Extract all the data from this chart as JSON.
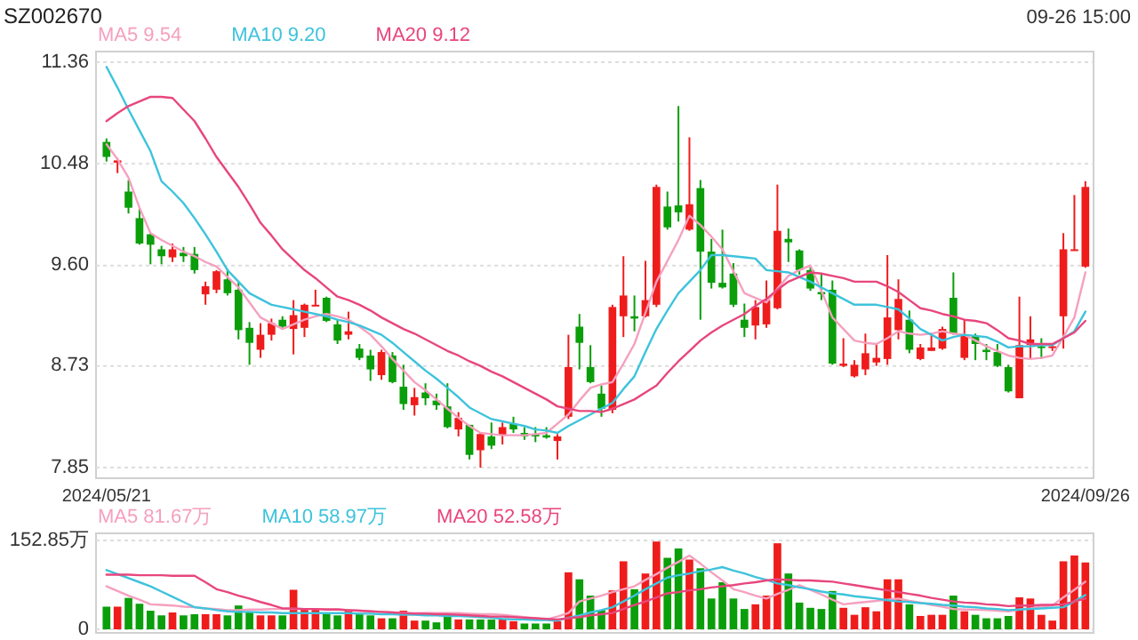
{
  "chart_data": [
    {
      "type": "candlestick",
      "title": "SZ002670",
      "annotations": [
        "09-26 15:00"
      ],
      "categories": [
        "2024/05/21",
        null,
        null,
        null,
        null,
        null,
        null,
        null,
        null,
        null,
        null,
        null,
        null,
        null,
        null,
        null,
        null,
        null,
        null,
        null,
        null,
        null,
        null,
        null,
        null,
        null,
        null,
        null,
        null,
        null,
        null,
        null,
        null,
        null,
        null,
        null,
        null,
        null,
        null,
        null,
        null,
        null,
        null,
        null,
        null,
        null,
        null,
        null,
        null,
        null,
        null,
        null,
        null,
        null,
        null,
        null,
        null,
        null,
        null,
        null,
        null,
        null,
        null,
        null,
        null,
        null,
        null,
        null,
        null,
        null,
        null,
        null,
        null,
        null,
        null,
        null,
        null,
        null,
        null,
        null,
        null,
        null,
        null,
        null,
        null,
        null,
        null,
        null,
        null,
        "2024/09/26"
      ],
      "ohlc": [
        [
          10.67,
          10.7,
          10.5,
          10.54
        ],
        [
          10.49,
          10.53,
          10.4,
          10.51
        ],
        [
          10.24,
          10.34,
          10.05,
          10.1
        ],
        [
          10.01,
          10.09,
          9.78,
          9.79
        ],
        [
          9.87,
          9.88,
          9.61,
          9.78
        ],
        [
          9.74,
          9.77,
          9.61,
          9.68
        ],
        [
          9.67,
          9.79,
          9.63,
          9.74
        ],
        [
          9.71,
          9.76,
          9.63,
          9.68
        ],
        [
          9.7,
          9.76,
          9.53,
          9.56
        ],
        [
          9.35,
          9.46,
          9.26,
          9.42
        ],
        [
          9.39,
          9.56,
          9.36,
          9.55
        ],
        [
          9.48,
          9.57,
          9.34,
          9.36
        ],
        [
          9.39,
          9.45,
          8.96,
          9.04
        ],
        [
          9.06,
          9.11,
          8.74,
          8.93
        ],
        [
          8.87,
          9.1,
          8.8,
          9.0
        ],
        [
          9.0,
          9.14,
          8.95,
          9.1
        ],
        [
          9.13,
          9.16,
          9.06,
          9.07
        ],
        [
          9.05,
          9.3,
          8.83,
          9.17
        ],
        [
          9.06,
          9.27,
          8.98,
          9.26
        ],
        [
          9.25,
          9.39,
          9.25,
          9.26
        ],
        [
          9.32,
          9.33,
          9.11,
          9.12
        ],
        [
          9.09,
          9.13,
          8.92,
          8.95
        ],
        [
          9.0,
          9.2,
          8.96,
          9.03
        ],
        [
          8.88,
          8.92,
          8.78,
          8.8
        ],
        [
          8.82,
          8.87,
          8.6,
          8.7
        ],
        [
          8.65,
          8.87,
          8.61,
          8.85
        ],
        [
          8.82,
          8.85,
          8.58,
          8.59
        ],
        [
          8.55,
          8.74,
          8.35,
          8.4
        ],
        [
          8.39,
          8.54,
          8.3,
          8.46
        ],
        [
          8.5,
          8.58,
          8.39,
          8.45
        ],
        [
          8.43,
          8.49,
          8.35,
          8.39
        ],
        [
          8.38,
          8.58,
          8.19,
          8.2
        ],
        [
          8.18,
          8.33,
          8.12,
          8.28
        ],
        [
          8.22,
          8.22,
          7.92,
          7.96
        ],
        [
          8.0,
          8.15,
          7.85,
          8.14
        ],
        [
          8.12,
          8.24,
          8.01,
          8.04
        ],
        [
          8.13,
          8.24,
          8.05,
          8.2
        ],
        [
          8.23,
          8.29,
          8.15,
          8.18
        ],
        [
          8.15,
          8.2,
          8.09,
          8.12
        ],
        [
          8.14,
          8.2,
          8.07,
          8.12
        ],
        [
          8.13,
          8.2,
          8.1,
          8.11
        ],
        [
          8.08,
          8.14,
          7.92,
          8.12
        ],
        [
          8.29,
          9.0,
          8.27,
          8.72
        ],
        [
          9.07,
          9.18,
          8.7,
          8.93
        ],
        [
          8.72,
          8.91,
          8.58,
          8.59
        ],
        [
          8.49,
          8.56,
          8.29,
          8.36
        ],
        [
          8.35,
          9.26,
          8.32,
          9.24
        ],
        [
          9.16,
          9.68,
          8.98,
          9.34
        ],
        [
          9.16,
          9.34,
          9.03,
          9.14
        ],
        [
          9.16,
          9.64,
          9.15,
          9.3
        ],
        [
          9.26,
          10.3,
          9.24,
          10.28
        ],
        [
          10.11,
          10.24,
          9.91,
          9.93
        ],
        [
          10.12,
          10.98,
          9.98,
          10.06
        ],
        [
          9.91,
          10.71,
          9.9,
          10.13
        ],
        [
          10.27,
          10.34,
          9.13,
          9.72
        ],
        [
          9.72,
          9.83,
          9.4,
          9.45
        ],
        [
          9.45,
          9.91,
          9.4,
          9.41
        ],
        [
          9.53,
          9.62,
          9.24,
          9.26
        ],
        [
          9.13,
          9.27,
          8.98,
          9.06
        ],
        [
          9.08,
          9.3,
          8.96,
          9.24
        ],
        [
          9.09,
          9.47,
          9.06,
          9.3
        ],
        [
          9.23,
          10.3,
          9.22,
          9.9
        ],
        [
          9.83,
          9.92,
          9.63,
          9.8
        ],
        [
          9.73,
          9.74,
          9.52,
          9.56
        ],
        [
          9.56,
          9.59,
          9.38,
          9.4
        ],
        [
          9.37,
          9.52,
          9.3,
          9.35
        ],
        [
          9.39,
          9.47,
          8.74,
          8.75
        ],
        [
          8.73,
          8.97,
          8.72,
          8.75
        ],
        [
          8.64,
          8.78,
          8.63,
          8.74
        ],
        [
          8.7,
          9.01,
          8.65,
          8.84
        ],
        [
          8.76,
          8.92,
          8.73,
          8.8
        ],
        [
          8.79,
          9.69,
          8.74,
          9.15
        ],
        [
          9.04,
          9.48,
          8.96,
          9.31
        ],
        [
          9.13,
          9.21,
          8.84,
          8.87
        ],
        [
          8.79,
          8.92,
          8.78,
          8.89
        ],
        [
          8.86,
          9.01,
          8.86,
          8.89
        ],
        [
          8.88,
          9.07,
          8.87,
          9.05
        ],
        [
          9.32,
          9.54,
          9.0,
          9.01
        ],
        [
          8.8,
          9.13,
          8.78,
          8.99
        ],
        [
          8.99,
          9.01,
          8.78,
          8.92
        ],
        [
          8.87,
          8.92,
          8.78,
          8.85
        ],
        [
          8.85,
          8.92,
          8.72,
          8.73
        ],
        [
          8.72,
          8.74,
          8.5,
          8.51
        ],
        [
          8.45,
          9.33,
          8.45,
          8.91
        ],
        [
          8.91,
          9.16,
          8.79,
          8.96
        ],
        [
          8.9,
          8.97,
          8.79,
          8.89
        ],
        [
          8.89,
          8.92,
          8.86,
          8.9
        ],
        [
          9.16,
          9.88,
          8.88,
          9.74
        ],
        [
          9.73,
          10.21,
          9.73,
          9.74
        ],
        [
          9.59,
          10.33,
          9.58,
          10.28
        ]
      ],
      "colors": [
        "#0a9e0a",
        "#ef1c1c",
        "#0a9e0a",
        "#0a9e0a",
        "#0a9e0a",
        "#0a9e0a",
        "#ef1c1c",
        "#0a9e0a",
        "#0a9e0a",
        "#ef1c1c",
        "#ef1c1c",
        "#0a9e0a",
        "#0a9e0a",
        "#0a9e0a",
        "#ef1c1c",
        "#ef1c1c",
        "#0a9e0a",
        "#ef1c1c",
        "#ef1c1c",
        "#ef1c1c",
        "#0a9e0a",
        "#0a9e0a",
        "#ef1c1c",
        "#0a9e0a",
        "#0a9e0a",
        "#ef1c1c",
        "#0a9e0a",
        "#0a9e0a",
        "#ef1c1c",
        "#0a9e0a",
        "#0a9e0a",
        "#0a9e0a",
        "#ef1c1c",
        "#0a9e0a",
        "#ef1c1c",
        "#0a9e0a",
        "#ef1c1c",
        "#0a9e0a",
        "#0a9e0a",
        "#0a9e0a",
        "#0a9e0a",
        "#ef1c1c",
        "#ef1c1c",
        "#0a9e0a",
        "#0a9e0a",
        "#0a9e0a",
        "#ef1c1c",
        "#ef1c1c",
        "#0a9e0a",
        "#ef1c1c",
        "#ef1c1c",
        "#0a9e0a",
        "#0a9e0a",
        "#ef1c1c",
        "#0a9e0a",
        "#0a9e0a",
        "#0a9e0a",
        "#0a9e0a",
        "#0a9e0a",
        "#ef1c1c",
        "#ef1c1c",
        "#ef1c1c",
        "#0a9e0a",
        "#0a9e0a",
        "#0a9e0a",
        "#0a9e0a",
        "#0a9e0a",
        "#ef1c1c",
        "#ef1c1c",
        "#ef1c1c",
        "#ef1c1c",
        "#ef1c1c",
        "#ef1c1c",
        "#0a9e0a",
        "#ef1c1c",
        "#ef1c1c",
        "#ef1c1c",
        "#0a9e0a",
        "#ef1c1c",
        "#0a9e0a",
        "#0a9e0a",
        "#0a9e0a",
        "#0a9e0a",
        "#ef1c1c",
        "#ef1c1c",
        "#0a9e0a",
        "#ef1c1c",
        "#ef1c1c",
        "#ef1c1c",
        "#ef1c1c"
      ],
      "series": [
        {
          "type": "line",
          "name": "MA5 9.54",
          "color": "#f5a0bf",
          "values": [
            10.65,
            10.52,
            10.36,
            10.1,
            9.88,
            9.82,
            9.77,
            9.72,
            9.68,
            9.63,
            9.59,
            9.5,
            9.41,
            9.28,
            9.15,
            9.1,
            9.05,
            9.09,
            9.13,
            9.16,
            9.18,
            9.16,
            9.13,
            9.07,
            9.0,
            8.9,
            8.79,
            8.69,
            8.59,
            8.52,
            8.44,
            8.36,
            8.28,
            8.21,
            8.15,
            8.14,
            8.13,
            8.13,
            8.13,
            8.14,
            8.15,
            8.23,
            8.31,
            8.43,
            8.54,
            8.57,
            8.59,
            8.75,
            8.92,
            9.19,
            9.46,
            9.64,
            9.82,
            10.03,
            9.95,
            9.85,
            9.74,
            9.55,
            9.36,
            9.32,
            9.28,
            9.4,
            9.51,
            9.56,
            9.6,
            9.38,
            9.15,
            9.05,
            8.95,
            8.93,
            8.92,
            8.97,
            9.03,
            9.01,
            9.0,
            9.01,
            9.03,
            9.01,
            9.0,
            8.95,
            8.9,
            8.86,
            8.82,
            8.8,
            8.79,
            8.8,
            8.82,
            8.98,
            9.15,
            9.54
          ]
        },
        {
          "type": "line",
          "name": "MA10 9.20",
          "color": "#3ec3dc",
          "values": [
            11.32,
            11.14,
            10.95,
            10.77,
            10.59,
            10.33,
            10.24,
            10.14,
            10.01,
            9.87,
            9.72,
            9.56,
            9.46,
            9.36,
            9.31,
            9.26,
            9.24,
            9.22,
            9.2,
            9.18,
            9.16,
            9.13,
            9.11,
            9.08,
            9.04,
            9.0,
            8.93,
            8.85,
            8.77,
            8.69,
            8.62,
            8.54,
            8.46,
            8.37,
            8.32,
            8.27,
            8.25,
            8.23,
            8.21,
            8.18,
            8.17,
            8.15,
            8.21,
            8.26,
            8.31,
            8.36,
            8.41,
            8.53,
            8.64,
            8.85,
            9.05,
            9.21,
            9.36,
            9.46,
            9.56,
            9.69,
            9.69,
            9.68,
            9.67,
            9.66,
            9.56,
            9.55,
            9.54,
            9.5,
            9.46,
            9.41,
            9.36,
            9.31,
            9.26,
            9.26,
            9.26,
            9.24,
            9.22,
            9.14,
            9.05,
            9.0,
            8.95,
            8.98,
            9.0,
            8.99,
            8.98,
            8.94,
            8.89,
            8.9,
            8.9,
            8.91,
            8.91,
            8.97,
            9.03,
            9.2
          ]
        },
        {
          "type": "line",
          "name": "MA20 9.12",
          "color": "#e8467d",
          "values": [
            10.85,
            10.92,
            10.98,
            11.02,
            11.06,
            11.06,
            11.05,
            10.95,
            10.85,
            10.7,
            10.54,
            10.41,
            10.28,
            10.13,
            9.97,
            9.86,
            9.74,
            9.65,
            9.56,
            9.49,
            9.41,
            9.33,
            9.3,
            9.26,
            9.21,
            9.15,
            9.1,
            9.05,
            9.01,
            8.96,
            8.91,
            8.86,
            8.82,
            8.77,
            8.73,
            8.68,
            8.64,
            8.59,
            8.54,
            8.49,
            8.44,
            8.38,
            8.36,
            8.34,
            8.34,
            8.33,
            8.36,
            8.4,
            8.44,
            8.5,
            8.56,
            8.67,
            8.77,
            8.86,
            8.95,
            9.02,
            9.08,
            9.13,
            9.18,
            9.25,
            9.31,
            9.39,
            9.46,
            9.5,
            9.54,
            9.53,
            9.51,
            9.49,
            9.46,
            9.46,
            9.46,
            9.42,
            9.37,
            9.3,
            9.23,
            9.21,
            9.18,
            9.16,
            9.13,
            9.12,
            9.1,
            9.04,
            8.97,
            8.95,
            8.92,
            8.92,
            8.92,
            8.97,
            9.02,
            9.12
          ]
        }
      ],
      "ylim": [
        7.85,
        11.36
      ],
      "yticks": [
        11.36,
        10.48,
        {
          "value": 9.6,
          "label": "9.60"
        },
        8.73,
        7.85
      ],
      "grid": "y",
      "legend": "top left"
    },
    {
      "type": "bar",
      "categories": [
        null,
        null,
        null,
        null,
        null,
        null,
        null,
        null,
        null,
        null,
        null,
        null,
        null,
        null,
        null,
        null,
        null,
        null,
        null,
        null,
        null,
        null,
        null,
        null,
        null,
        null,
        null,
        null,
        null,
        null,
        null,
        null,
        null,
        null,
        null,
        null,
        null,
        null,
        null,
        null,
        null,
        null,
        null,
        null,
        null,
        null,
        null,
        null,
        null,
        null,
        null,
        null,
        null,
        null,
        null,
        null,
        null,
        null,
        null,
        null,
        null,
        null,
        null,
        null,
        null,
        null,
        null,
        null,
        null,
        null,
        null,
        null,
        null,
        null,
        null,
        null,
        null,
        null,
        null,
        null,
        null,
        null,
        null,
        null,
        null,
        null,
        null,
        null,
        null,
        null
      ],
      "values": [
        39,
        39,
        54,
        44,
        32,
        24,
        29,
        24,
        26,
        26,
        26,
        24,
        41,
        29,
        24,
        24,
        24,
        68,
        34,
        34,
        26,
        24,
        34,
        26,
        24,
        19,
        19,
        32,
        15,
        15,
        12,
        27,
        17,
        17,
        17,
        17,
        17,
        14,
        10,
        10,
        10,
        14,
        98,
        86,
        58,
        33,
        67,
        117,
        69,
        96,
        151,
        123,
        139,
        120,
        105,
        53,
        81,
        53,
        35,
        43,
        58,
        148,
        96,
        46,
        37,
        35,
        66,
        37,
        25,
        38,
        31,
        86,
        86,
        43,
        23,
        25,
        25,
        58,
        31,
        25,
        19,
        19,
        23,
        55,
        53,
        25,
        15,
        117,
        127,
        115
      ],
      "colors": [
        "#0a9e0a",
        "#ef1c1c",
        "#0a9e0a",
        "#0a9e0a",
        "#0a9e0a",
        "#0a9e0a",
        "#ef1c1c",
        "#0a9e0a",
        "#0a9e0a",
        "#ef1c1c",
        "#ef1c1c",
        "#0a9e0a",
        "#0a9e0a",
        "#0a9e0a",
        "#ef1c1c",
        "#ef1c1c",
        "#0a9e0a",
        "#ef1c1c",
        "#ef1c1c",
        "#ef1c1c",
        "#0a9e0a",
        "#0a9e0a",
        "#ef1c1c",
        "#0a9e0a",
        "#0a9e0a",
        "#ef1c1c",
        "#0a9e0a",
        "#ef1c1c",
        "#ef1c1c",
        "#0a9e0a",
        "#0a9e0a",
        "#0a9e0a",
        "#ef1c1c",
        "#0a9e0a",
        "#0a9e0a",
        "#0a9e0a",
        "#ef1c1c",
        "#ef1c1c",
        "#0a9e0a",
        "#0a9e0a",
        "#0a9e0a",
        "#ef1c1c",
        "#ef1c1c",
        "#0a9e0a",
        "#0a9e0a",
        "#0a9e0a",
        "#ef1c1c",
        "#ef1c1c",
        "#0a9e0a",
        "#ef1c1c",
        "#ef1c1c",
        "#0a9e0a",
        "#0a9e0a",
        "#ef1c1c",
        "#0a9e0a",
        "#0a9e0a",
        "#0a9e0a",
        "#0a9e0a",
        "#0a9e0a",
        "#ef1c1c",
        "#ef1c1c",
        "#ef1c1c",
        "#0a9e0a",
        "#0a9e0a",
        "#0a9e0a",
        "#0a9e0a",
        "#0a9e0a",
        "#ef1c1c",
        "#ef1c1c",
        "#ef1c1c",
        "#ef1c1c",
        "#ef1c1c",
        "#ef1c1c",
        "#0a9e0a",
        "#ef1c1c",
        "#ef1c1c",
        "#ef1c1c",
        "#0a9e0a",
        "#ef1c1c",
        "#0a9e0a",
        "#0a9e0a",
        "#0a9e0a",
        "#0a9e0a",
        "#ef1c1c",
        "#ef1c1c",
        "#ef1c1c",
        "#ef1c1c",
        "#ef1c1c",
        "#ef1c1c",
        "#ef1c1c"
      ],
      "series": [
        {
          "type": "line",
          "name": "MA5 81.67万",
          "color": "#f5a0bf",
          "values": [
            74,
            66,
            58,
            51,
            43,
            42,
            41,
            39,
            38,
            36,
            35,
            33,
            33,
            34,
            34,
            35,
            35,
            35,
            35,
            35,
            35,
            35,
            33,
            32,
            31,
            30,
            29,
            28,
            28,
            28,
            28,
            28,
            28,
            27,
            26,
            26,
            25,
            23,
            21,
            19,
            17,
            22,
            28,
            48,
            53,
            58,
            64,
            69,
            74,
            85,
            95,
            106,
            116,
            127,
            113,
            98,
            84,
            69,
            64,
            58,
            53,
            61,
            68,
            76,
            68,
            60,
            51,
            43,
            45,
            47,
            49,
            51,
            53,
            49,
            46,
            42,
            39,
            35,
            34,
            34,
            33,
            32,
            31,
            34,
            36,
            39,
            41,
            55,
            68,
            82
          ]
        },
        {
          "type": "line",
          "name": "MA10 58.97万",
          "color": "#3ec3dc",
          "values": [
            102,
            95,
            88,
            81,
            74,
            65,
            56,
            47,
            38,
            36,
            33,
            31,
            30,
            30,
            29,
            29,
            28,
            28,
            28,
            28,
            28,
            28,
            28,
            27,
            27,
            26,
            26,
            25,
            25,
            24,
            24,
            23,
            23,
            22,
            21,
            20,
            18,
            17,
            17,
            16,
            16,
            15,
            20,
            24,
            29,
            33,
            38,
            48,
            58,
            69,
            79,
            89,
            93,
            96,
            100,
            103,
            107,
            101,
            96,
            90,
            85,
            79,
            76,
            72,
            69,
            65,
            62,
            60,
            57,
            55,
            53,
            50,
            48,
            47,
            45,
            44,
            42,
            41,
            39,
            38,
            36,
            35,
            33,
            34,
            35,
            36,
            37,
            38,
            48,
            59
          ]
        },
        {
          "type": "line",
          "name": "MA20 52.58万",
          "color": "#e8467d",
          "values": [
            94,
            94,
            94,
            93,
            93,
            93,
            92,
            92,
            92,
            81,
            69,
            64,
            58,
            53,
            47,
            42,
            36,
            36,
            35,
            35,
            34,
            34,
            33,
            32,
            31,
            30,
            29,
            28,
            27,
            27,
            26,
            26,
            25,
            24,
            23,
            22,
            22,
            21,
            20,
            19,
            18,
            17,
            19,
            21,
            24,
            26,
            28,
            35,
            42,
            48,
            55,
            62,
            64,
            67,
            69,
            72,
            74,
            76,
            79,
            81,
            84,
            86,
            85,
            84,
            84,
            83,
            82,
            79,
            76,
            73,
            70,
            67,
            64,
            61,
            58,
            54,
            51,
            48,
            46,
            45,
            43,
            42,
            40,
            41,
            41,
            42,
            42,
            43,
            48,
            53
          ]
        }
      ],
      "ylim": [
        0,
        152.85
      ],
      "yticks": [
        {
          "value": 152.85,
          "label": "152.85万"
        },
        0
      ],
      "grid": "y",
      "legend": "top left"
    }
  ]
}
